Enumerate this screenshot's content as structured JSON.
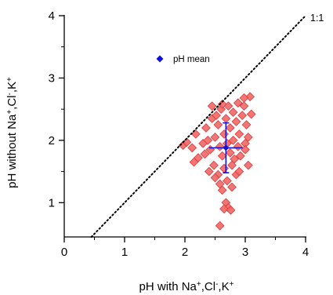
{
  "chart_data": {
    "type": "scatter",
    "xlabel": {
      "text": "pH with Na",
      "sup1": "+",
      "mid": ",Cl",
      "sup2": "-",
      "mid2": ",K",
      "sup3": "+"
    },
    "ylabel": {
      "text": "pH without Na",
      "sup1": "+",
      "mid": ",Cl",
      "sup2": "-",
      "mid2": ",K",
      "sup3": "+"
    },
    "xlim": [
      0,
      4
    ],
    "ylim": [
      0.45,
      4
    ],
    "xticks": [
      "0",
      "1",
      "2",
      "3",
      "4"
    ],
    "yticks": [
      "1",
      "2",
      "3",
      "4"
    ],
    "grid": false,
    "reference_line": {
      "label": "1:1",
      "style": "dotted"
    },
    "legend": {
      "position": "top-center",
      "entries": [
        "pH mean"
      ]
    },
    "colors": {
      "points_fill": "#f06b6b",
      "points_edge": "#d93a3a",
      "mean": "#1010e0",
      "axis": "#000000"
    },
    "points": [
      [
        1.97,
        1.92
      ],
      [
        2.03,
        1.97
      ],
      [
        2.12,
        1.88
      ],
      [
        2.18,
        2.1
      ],
      [
        2.22,
        1.72
      ],
      [
        2.15,
        1.65
      ],
      [
        2.3,
        1.95
      ],
      [
        2.35,
        2.2
      ],
      [
        2.38,
        2.0
      ],
      [
        2.42,
        1.85
      ],
      [
        2.45,
        2.35
      ],
      [
        2.48,
        1.6
      ],
      [
        2.5,
        2.05
      ],
      [
        2.52,
        2.4
      ],
      [
        2.55,
        1.45
      ],
      [
        2.55,
        2.25
      ],
      [
        2.58,
        1.3
      ],
      [
        2.58,
        1.9
      ],
      [
        2.6,
        2.5
      ],
      [
        2.62,
        1.75
      ],
      [
        2.62,
        1.2
      ],
      [
        2.65,
        2.1
      ],
      [
        2.65,
        1.55
      ],
      [
        2.68,
        2.35
      ],
      [
        2.68,
        1.0
      ],
      [
        2.7,
        1.95
      ],
      [
        2.7,
        1.35
      ],
      [
        2.72,
        2.55
      ],
      [
        2.72,
        0.92
      ],
      [
        2.75,
        1.8
      ],
      [
        2.75,
        2.2
      ],
      [
        2.78,
        1.6
      ],
      [
        2.78,
        1.25
      ],
      [
        2.8,
        2.45
      ],
      [
        2.8,
        2.0
      ],
      [
        2.82,
        1.7
      ],
      [
        2.85,
        2.3
      ],
      [
        2.85,
        1.45
      ],
      [
        2.88,
        1.9
      ],
      [
        2.88,
        2.6
      ],
      [
        2.9,
        2.1
      ],
      [
        2.92,
        1.75
      ],
      [
        2.95,
        2.4
      ],
      [
        2.98,
        2.55
      ],
      [
        3.0,
        1.95
      ],
      [
        3.02,
        2.25
      ],
      [
        3.05,
        1.6
      ],
      [
        3.05,
        2.05
      ],
      [
        3.08,
        2.7
      ],
      [
        3.1,
        2.42
      ],
      [
        2.98,
        2.68
      ],
      [
        2.62,
        2.58
      ],
      [
        2.5,
        1.4
      ],
      [
        2.4,
        1.5
      ],
      [
        2.58,
        0.63
      ],
      [
        2.65,
        0.9
      ],
      [
        2.45,
        2.55
      ],
      [
        2.33,
        1.78
      ],
      [
        2.9,
        1.5
      ],
      [
        3.0,
        1.85
      ],
      [
        2.76,
        0.88
      ]
    ],
    "mean": {
      "x": 2.68,
      "y": 1.88,
      "x_err": 0.28,
      "y_err": 0.4
    }
  }
}
